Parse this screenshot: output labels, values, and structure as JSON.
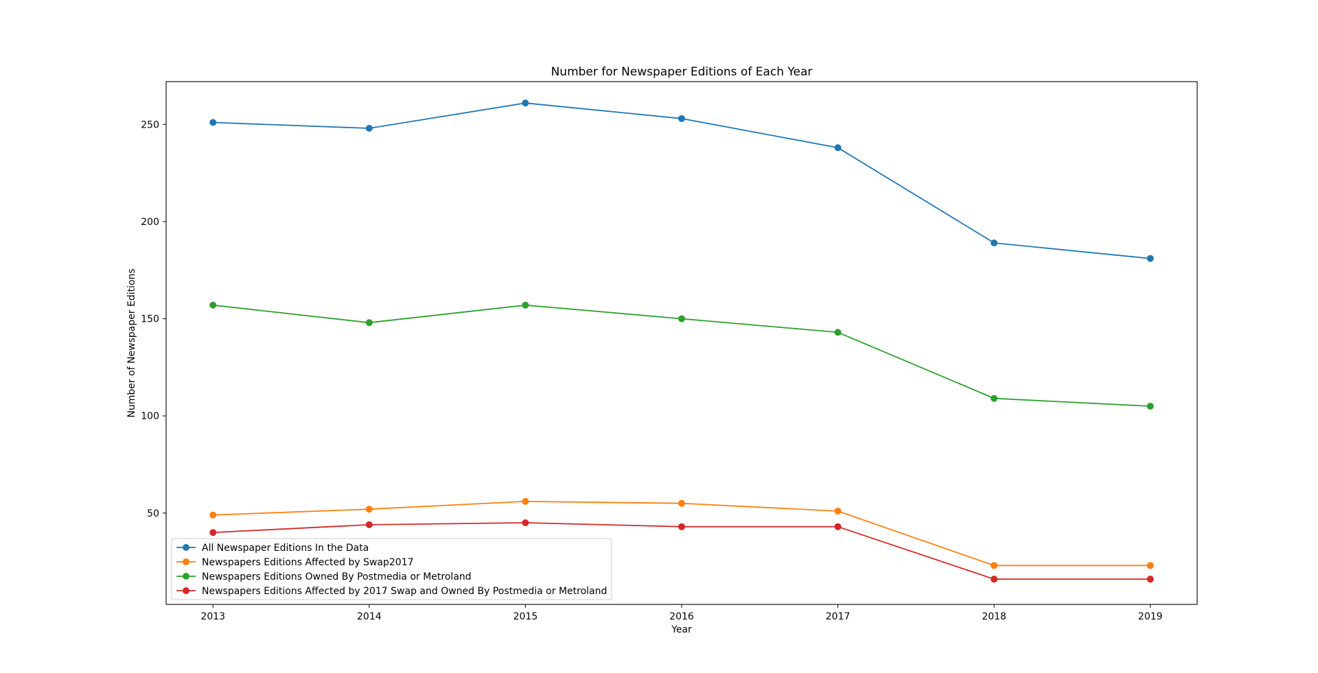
{
  "chart_data": {
    "type": "line",
    "title": "Number for Newspaper Editions of Each Year",
    "xlabel": "Year",
    "ylabel": "Number of Newspaper Editions",
    "x": [
      2013,
      2014,
      2015,
      2016,
      2017,
      2018,
      2019
    ],
    "xlim": [
      2012.7,
      2019.3
    ],
    "ylim": [
      3,
      272
    ],
    "yticks": [
      50,
      100,
      150,
      200,
      250
    ],
    "grid": false,
    "legend_position": "lower-left",
    "series": [
      {
        "name": "All Newspaper Editions In the Data",
        "color": "#1f77b4",
        "values": [
          251,
          248,
          261,
          253,
          238,
          189,
          181
        ]
      },
      {
        "name": "Newspapers Editions Affected by Swap2017",
        "color": "#ff7f0e",
        "values": [
          49,
          52,
          56,
          55,
          51,
          23,
          23
        ]
      },
      {
        "name": "Newspapers Editions Owned By Postmedia or Metroland",
        "color": "#2ca02c",
        "values": [
          157,
          148,
          157,
          150,
          143,
          109,
          105
        ]
      },
      {
        "name": "Newspapers Editions Affected by 2017 Swap and Owned By Postmedia or Metroland",
        "color": "#d62728",
        "values": [
          40,
          44,
          45,
          43,
          43,
          16,
          16
        ]
      }
    ]
  }
}
